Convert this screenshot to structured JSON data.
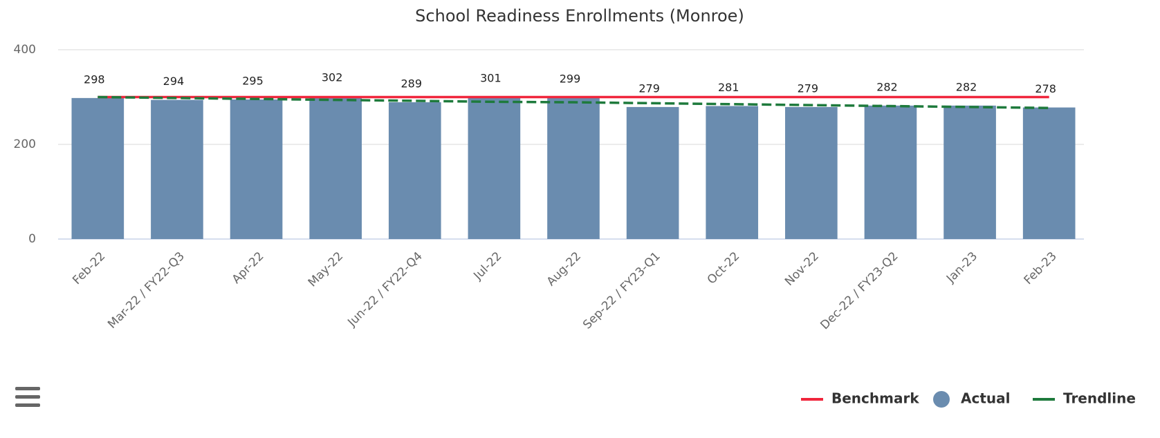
{
  "chart_data": {
    "type": "bar",
    "title": "School Readiness Enrollments (Monroe)",
    "categories": [
      "Feb-22",
      "Mar-22 / FY22-Q3",
      "Apr-22",
      "May-22",
      "Jun-22 / FY22-Q4",
      "Jul-22",
      "Aug-22",
      "Sep-22 / FY23-Q1",
      "Oct-22",
      "Nov-22",
      "Dec-22 / FY23-Q2",
      "Jan-23",
      "Feb-23"
    ],
    "series": [
      {
        "name": "Benchmark",
        "type": "line",
        "color": "#f0263c",
        "dashed": false,
        "values": [
          300,
          300,
          300,
          300,
          300,
          300,
          300,
          300,
          300,
          300,
          300,
          300,
          300
        ]
      },
      {
        "name": "Actual",
        "type": "bar",
        "color": "#6a8caf",
        "data_labels": true,
        "values": [
          298,
          294,
          295,
          302,
          289,
          301,
          299,
          279,
          281,
          279,
          282,
          282,
          278
        ]
      },
      {
        "name": "Trendline",
        "type": "line",
        "color": "#1e7a3c",
        "dashed": true,
        "values": [
          300,
          298,
          296,
          294,
          292,
          290,
          289,
          287,
          285,
          283,
          281,
          279,
          277
        ]
      }
    ],
    "ylim": [
      0,
      400
    ],
    "yticks": [
      0,
      200,
      400
    ],
    "grid": true,
    "legend": "bottom-right"
  }
}
